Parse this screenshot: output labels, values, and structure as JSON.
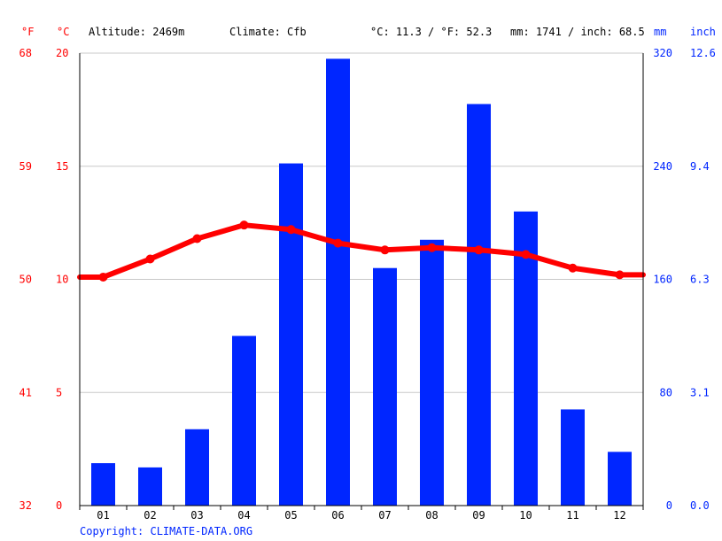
{
  "header": {
    "unit_f": "°F",
    "unit_c": "°C",
    "altitude": "Altitude: 2469m",
    "climate": "Climate: Cfb",
    "temp_summary": "°C: 11.3 / °F: 52.3",
    "precip_summary": "mm: 1741 / inch: 68.5",
    "unit_mm": "mm",
    "unit_inch": "inch"
  },
  "axes": {
    "left_f_ticks": [
      "68",
      "59",
      "50",
      "41",
      "32"
    ],
    "left_c_ticks": [
      "20",
      "15",
      "10",
      "5",
      "0"
    ],
    "right_mm_ticks": [
      "320",
      "240",
      "160",
      "80",
      "0"
    ],
    "right_inch_ticks": [
      "12.6",
      "9.4",
      "6.3",
      "3.1",
      "0.0"
    ]
  },
  "footer": {
    "copyright": "Copyright: CLIMATE-DATA.ORG"
  },
  "colors": {
    "temperature": "#ff0000",
    "precipitation": "#0026ff",
    "grid": "#c8c8c8"
  },
  "chart_data": {
    "type": "bar",
    "categories": [
      "01",
      "02",
      "03",
      "04",
      "05",
      "06",
      "07",
      "08",
      "09",
      "10",
      "11",
      "12"
    ],
    "series": [
      {
        "type": "bar",
        "axis": "mm",
        "values": [
          30,
          27,
          54,
          120,
          242,
          316,
          168,
          188,
          284,
          208,
          68,
          38
        ]
      },
      {
        "type": "line",
        "axis": "°C",
        "values": [
          10.1,
          10.9,
          11.8,
          12.4,
          12.2,
          11.6,
          11.3,
          11.4,
          11.3,
          11.1,
          10.5,
          10.2
        ]
      }
    ],
    "ylim_c": [
      0,
      20
    ],
    "ylim_mm": [
      0,
      320
    ],
    "grid": true
  }
}
